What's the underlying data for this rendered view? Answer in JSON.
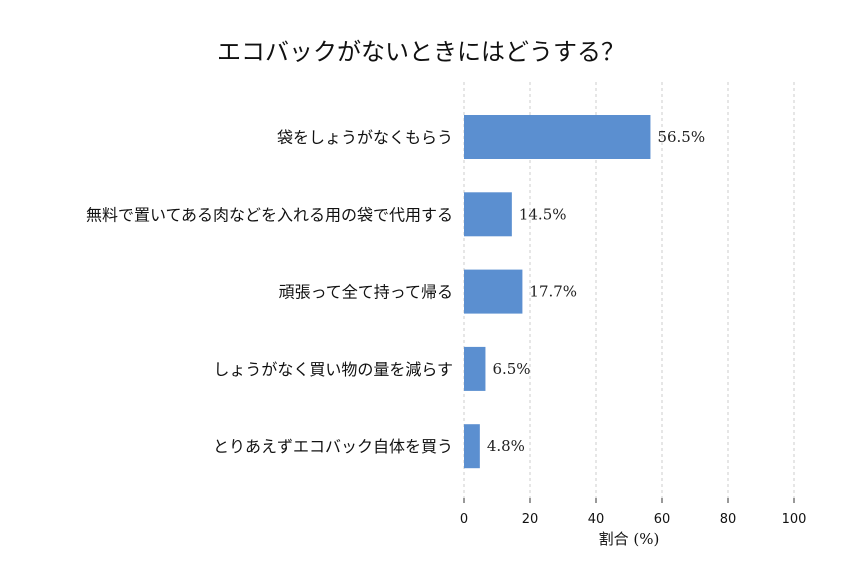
{
  "chart_data": {
    "type": "bar",
    "orientation": "horizontal",
    "title": "エコバックがないときにはどうする？",
    "xlabel": "割合 (%)",
    "ylabel": "",
    "categories": [
      "袋をしょうがなくもらう",
      "無料で置いてある肉などを入れる用の袋で代用する",
      "頑張って全て持って帰る",
      "しょうがなく買い物の量を減らす",
      "とりあえずエコバック自体を買う"
    ],
    "values": [
      56.5,
      14.5,
      17.7,
      6.5,
      4.8
    ],
    "value_labels": [
      "56.5%",
      "14.5%",
      "17.7%",
      "6.5%",
      "4.8%"
    ],
    "xlim": [
      0,
      100
    ],
    "xticks": [
      0,
      20,
      40,
      60,
      80,
      100
    ],
    "grid": true,
    "bar_color": "#5b8fd0"
  }
}
